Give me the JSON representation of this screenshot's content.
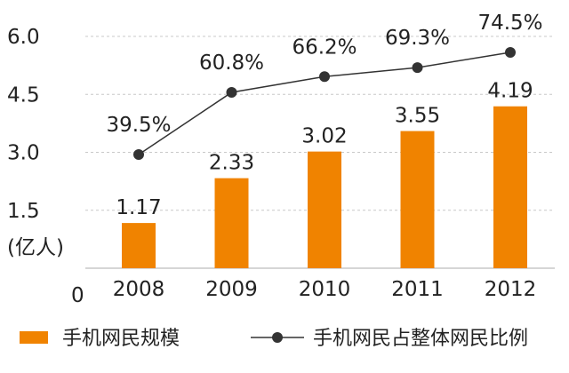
{
  "chart_data": {
    "type": "bar",
    "categories": [
      "2008",
      "2009",
      "2010",
      "2011",
      "2012"
    ],
    "series": [
      {
        "name": "手机网民规模",
        "type": "bar",
        "values": [
          1.17,
          2.33,
          3.02,
          3.55,
          4.19
        ],
        "labels": [
          "1.17",
          "2.33",
          "3.02",
          "3.55",
          "4.19"
        ],
        "color": "#f08300"
      },
      {
        "name": "手机网民占整体网民比例",
        "type": "line",
        "values": [
          39.5,
          60.8,
          66.2,
          69.3,
          74.5
        ],
        "labels": [
          "39.5%",
          "60.8%",
          "66.2%",
          "69.3%",
          "74.5%"
        ],
        "color": "#333333"
      }
    ],
    "y_ticks": [
      "6.0",
      "4.5",
      "3.0",
      "1.5",
      "0"
    ],
    "y_tick_values": [
      6.0,
      4.5,
      3.0,
      1.5,
      0
    ],
    "ylabel": "(亿人)",
    "ylim": [
      0,
      6.0
    ],
    "grid": true,
    "grid_color": "#c8c8c8",
    "legend_position": "bottom"
  }
}
